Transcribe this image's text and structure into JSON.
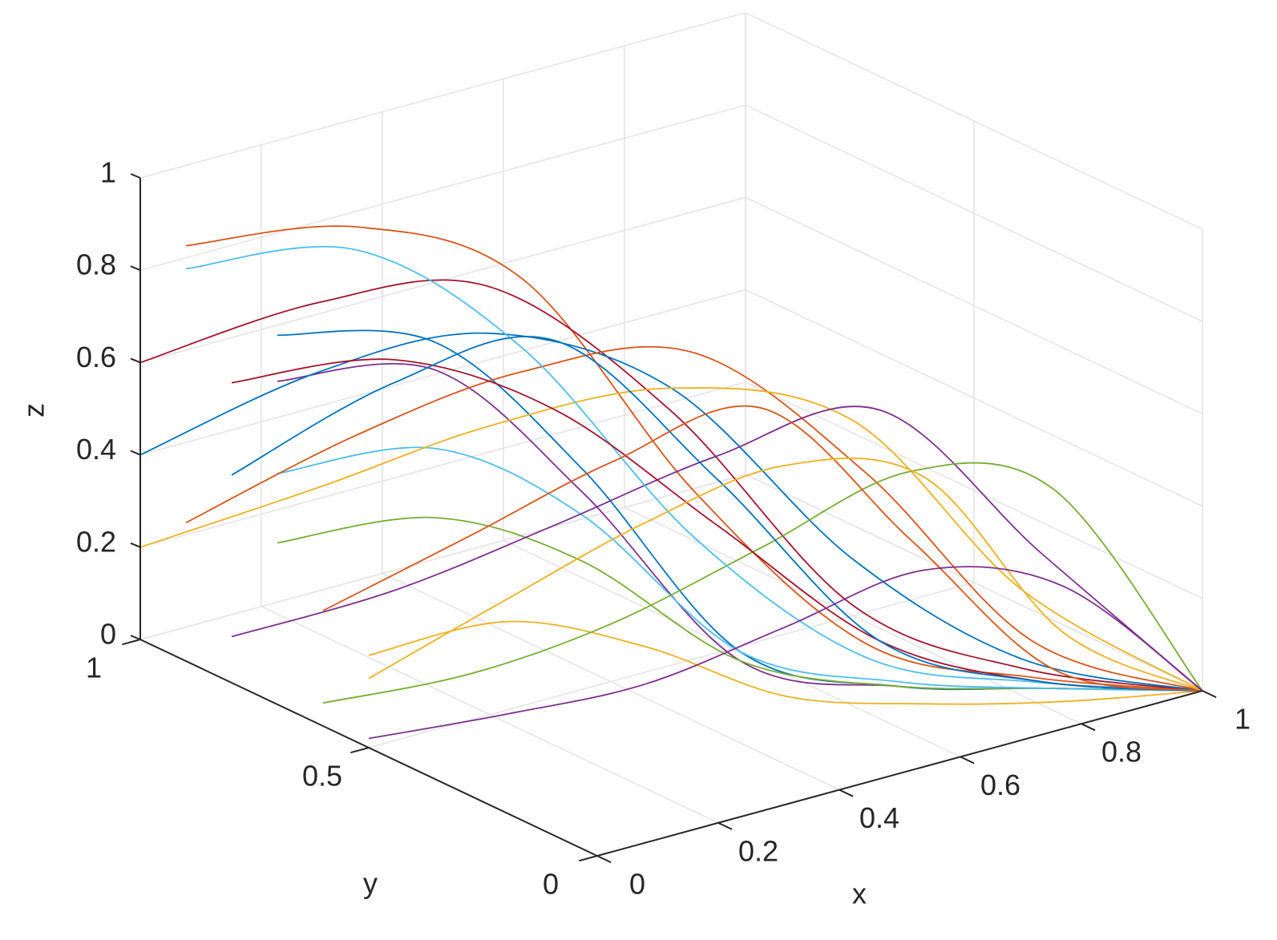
{
  "chart_data": {
    "type": "line3d",
    "xlabel": "x",
    "ylabel": "y",
    "zlabel": "z",
    "xlim": [
      0,
      1
    ],
    "ylim": [
      0,
      1
    ],
    "zlim": [
      0,
      1
    ],
    "xticks": [
      0,
      0.2,
      0.4,
      0.6,
      0.8,
      1
    ],
    "yticks": [
      0,
      0.5,
      1
    ],
    "zticks": [
      0,
      0.2,
      0.4,
      0.6,
      0.8,
      1
    ],
    "grid": true,
    "x": [
      0,
      0.17,
      0.33,
      0.5,
      0.67,
      0.83,
      1
    ],
    "series": [
      {
        "color": "#0072BD",
        "y": [
          0.7,
          0.58,
          0.47,
          0.35,
          0.23,
          0.12,
          0
        ],
        "z": [
          0.8,
          0.78,
          0.5,
          0.1,
          0.02,
          0.01,
          0
        ]
      },
      {
        "color": "#D95319",
        "y": [
          0.9,
          0.75,
          0.6,
          0.45,
          0.3,
          0.15,
          0
        ],
        "z": [
          0.9,
          0.95,
          0.85,
          0.4,
          0.08,
          0.02,
          0
        ]
      },
      {
        "color": "#EDB120",
        "y": [
          0.5,
          0.42,
          0.33,
          0.25,
          0.17,
          0.08,
          0
        ],
        "z": [
          0.2,
          0.25,
          0.18,
          0.05,
          0.01,
          0,
          0
        ]
      },
      {
        "color": "#7E2F8E",
        "y": [
          0.7,
          0.58,
          0.47,
          0.35,
          0.23,
          0.12,
          0
        ],
        "z": [
          0.7,
          0.72,
          0.45,
          0.08,
          0.02,
          0.01,
          0
        ]
      },
      {
        "color": "#77AC30",
        "y": [
          0.7,
          0.58,
          0.47,
          0.35,
          0.23,
          0.12,
          0
        ],
        "z": [
          0.35,
          0.4,
          0.3,
          0.08,
          0.02,
          0.01,
          0
        ]
      },
      {
        "color": "#4DBEEE",
        "y": [
          0.7,
          0.58,
          0.47,
          0.35,
          0.23,
          0.12,
          0
        ],
        "z": [
          0.5,
          0.55,
          0.4,
          0.1,
          0.03,
          0.01,
          0
        ]
      },
      {
        "color": "#A2142F",
        "y": [
          1,
          0.83,
          0.67,
          0.5,
          0.33,
          0.17,
          0
        ],
        "z": [
          0.6,
          0.75,
          0.8,
          0.55,
          0.15,
          0.03,
          0
        ]
      },
      {
        "color": "#0072BD",
        "y": [
          1,
          0.83,
          0.67,
          0.5,
          0.33,
          0.17,
          0
        ],
        "z": [
          0.4,
          0.6,
          0.7,
          0.6,
          0.25,
          0.05,
          0
        ]
      },
      {
        "color": "#D95319",
        "y": [
          0.9,
          0.75,
          0.6,
          0.45,
          0.3,
          0.15,
          0
        ],
        "z": [
          0.3,
          0.5,
          0.65,
          0.7,
          0.45,
          0.1,
          0
        ]
      },
      {
        "color": "#EDB120",
        "y": [
          1,
          0.83,
          0.67,
          0.5,
          0.33,
          0.17,
          0
        ],
        "z": [
          0.2,
          0.35,
          0.5,
          0.6,
          0.55,
          0.2,
          0
        ]
      },
      {
        "color": "#7E2F8E",
        "y": [
          0.8,
          0.67,
          0.53,
          0.4,
          0.27,
          0.13,
          0
        ],
        "z": [
          0.1,
          0.2,
          0.35,
          0.5,
          0.6,
          0.3,
          0
        ]
      },
      {
        "color": "#77AC30",
        "y": [
          0.6,
          0.5,
          0.4,
          0.3,
          0.2,
          0.1,
          0
        ],
        "z": [
          0.05,
          0.1,
          0.2,
          0.35,
          0.5,
          0.45,
          0
        ]
      },
      {
        "color": "#4DBEEE",
        "y": [
          0.9,
          0.75,
          0.6,
          0.45,
          0.3,
          0.15,
          0
        ],
        "z": [
          0.85,
          0.9,
          0.7,
          0.3,
          0.05,
          0.01,
          0
        ]
      },
      {
        "color": "#A2142F",
        "y": [
          0.8,
          0.67,
          0.53,
          0.4,
          0.27,
          0.13,
          0
        ],
        "z": [
          0.65,
          0.7,
          0.6,
          0.35,
          0.1,
          0.02,
          0
        ]
      },
      {
        "color": "#0072BD",
        "y": [
          0.8,
          0.67,
          0.53,
          0.4,
          0.27,
          0.13,
          0
        ],
        "z": [
          0.45,
          0.65,
          0.75,
          0.45,
          0.1,
          0.02,
          0
        ]
      },
      {
        "color": "#D95319",
        "y": [
          0.6,
          0.5,
          0.4,
          0.3,
          0.2,
          0.1,
          0
        ],
        "z": [
          0.25,
          0.4,
          0.55,
          0.65,
          0.35,
          0.06,
          0
        ]
      },
      {
        "color": "#EDB120",
        "y": [
          0.5,
          0.42,
          0.33,
          0.25,
          0.17,
          0.08,
          0
        ],
        "z": [
          0.15,
          0.3,
          0.45,
          0.55,
          0.5,
          0.15,
          0
        ]
      },
      {
        "color": "#7E2F8E",
        "y": [
          0.5,
          0.42,
          0.33,
          0.25,
          0.17,
          0.08,
          0
        ],
        "z": [
          0.02,
          0.05,
          0.1,
          0.2,
          0.3,
          0.25,
          0
        ]
      }
    ]
  }
}
